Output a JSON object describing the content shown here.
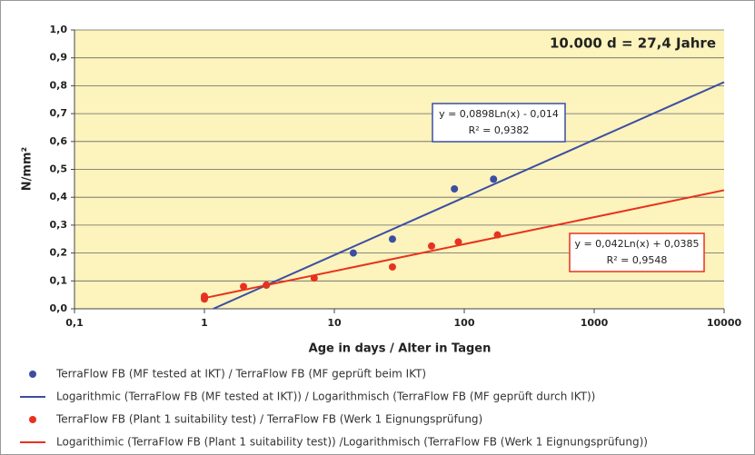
{
  "chart_data": {
    "type": "scatter",
    "x_label": "Age in days / Alter in Tagen",
    "y_label": "N/mm²",
    "xscale": "log",
    "xlim": [
      0.1,
      10000
    ],
    "xticks": [
      {
        "value": 0.1,
        "label": "0,1"
      },
      1,
      10,
      100,
      1000,
      10000
    ],
    "ylim": [
      0,
      1
    ],
    "yticks": [
      {
        "value": 0,
        "label": "0,0"
      },
      {
        "value": 0.1,
        "label": "0,1"
      },
      {
        "value": 0.2,
        "label": "0,2"
      },
      {
        "value": 0.3,
        "label": "0,3"
      },
      {
        "value": 0.4,
        "label": "0,4"
      },
      {
        "value": 0.5,
        "label": "0,5"
      },
      {
        "value": 0.6,
        "label": "0,6"
      },
      {
        "value": 0.7,
        "label": "0,7"
      },
      {
        "value": 0.8,
        "label": "0,8"
      },
      {
        "value": 0.9,
        "label": "0,9"
      },
      {
        "value": 1,
        "label": "1,0"
      }
    ],
    "grid": true,
    "background": "#fcf3bd",
    "series": [
      {
        "name": "TerraFlow FB (MF tested at IKT) / TerraFlow FB (MF geprüft beim IKT)",
        "type": "scatter",
        "color": "#3b4ea3",
        "x": [
          1,
          3,
          14,
          28,
          84,
          168
        ],
        "values": [
          0.04,
          0.085,
          0.2,
          0.25,
          0.43,
          0.465
        ]
      },
      {
        "name": "Logarithmic (TerraFlow FB (MF tested at IKT)) / Logarithmisch (TerraFlow FB (MF geprüft durch IKT))",
        "type": "line",
        "color": "#3b4ea3",
        "x": [
          1.17,
          10000
        ],
        "values": [
          0,
          0.813
        ]
      },
      {
        "name": "TerraFlow FB (Plant 1 suitability test) / TerraFlow FB (Werk 1 Eignungsprüfung)",
        "type": "scatter",
        "color": "#e8321e",
        "x": [
          1,
          1,
          2,
          3,
          7,
          28,
          56,
          90,
          180
        ],
        "values": [
          0.045,
          0.035,
          0.08,
          0.085,
          0.11,
          0.15,
          0.225,
          0.24,
          0.265
        ]
      },
      {
        "name": "Logarithimic (TerraFlow FB (Plant 1 suitability test)) /Logarithmisch (TerraFlow FB (Werk 1 Eignungsprüfung))",
        "type": "line",
        "color": "#e8321e",
        "x": [
          1,
          10000
        ],
        "values": [
          0.0385,
          0.4253
        ]
      }
    ],
    "annotations": [
      {
        "text": "10.000 d = 27,4 Jahre",
        "color": "#3a9a2a"
      },
      {
        "lines": [
          "y = 0,0898Ln(x) - 0,014",
          "R² = 0,9382"
        ],
        "color": "#3b4ea3"
      },
      {
        "lines": [
          "y = 0,042Ln(x) + 0,0385",
          "R² = 0,9548"
        ],
        "color": "#e8321e"
      }
    ]
  }
}
